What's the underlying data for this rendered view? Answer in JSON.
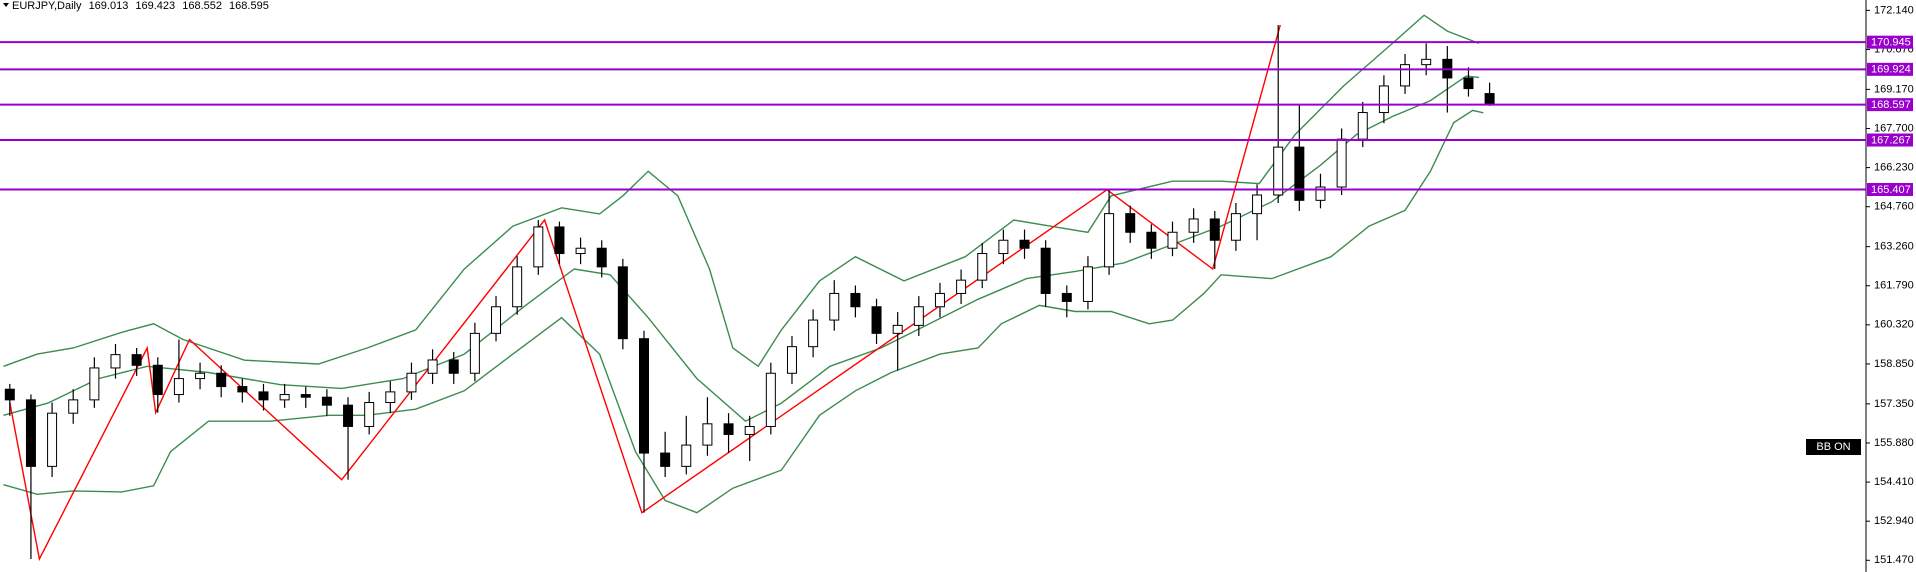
{
  "chart_data": {
    "type": "candlestick",
    "title": "EURJPY,Daily",
    "ylim": [
      151.03,
      172.53
    ],
    "yticks": [
      {
        "value": 172.14,
        "label": "172.140"
      },
      {
        "value": 170.67,
        "label": "170.670"
      },
      {
        "value": 169.17,
        "label": "169.170"
      },
      {
        "value": 167.7,
        "label": "167.700"
      },
      {
        "value": 166.23,
        "label": "166.230"
      },
      {
        "value": 164.76,
        "label": "164.760"
      },
      {
        "value": 163.26,
        "label": "163.260"
      },
      {
        "value": 161.79,
        "label": "161.790"
      },
      {
        "value": 160.32,
        "label": "160.320"
      },
      {
        "value": 158.85,
        "label": "158.850"
      },
      {
        "value": 157.35,
        "label": "157.350"
      },
      {
        "value": 155.88,
        "label": "155.880"
      },
      {
        "value": 154.41,
        "label": "154.410"
      },
      {
        "value": 152.94,
        "label": "152.940"
      },
      {
        "value": 151.47,
        "label": "151.470"
      }
    ],
    "up_color": "#ffffff",
    "down_color": "#000000",
    "ohlc": [
      [
        157.9,
        158.1,
        156.9,
        157.5
      ],
      [
        157.5,
        157.7,
        151.52,
        155.0
      ],
      [
        155.0,
        157.4,
        154.6,
        157.0
      ],
      [
        157.0,
        157.9,
        156.6,
        157.5
      ],
      [
        157.5,
        159.1,
        157.2,
        158.7
      ],
      [
        158.7,
        159.6,
        158.3,
        159.2
      ],
      [
        159.2,
        159.45,
        158.4,
        158.8
      ],
      [
        158.8,
        159.1,
        157.02,
        157.7
      ],
      [
        157.7,
        159.77,
        157.4,
        158.3
      ],
      [
        158.3,
        158.9,
        157.9,
        158.5
      ],
      [
        158.5,
        158.8,
        157.6,
        158.0
      ],
      [
        158.0,
        158.3,
        157.4,
        157.8
      ],
      [
        157.8,
        158.1,
        157.1,
        157.5
      ],
      [
        157.5,
        158.1,
        157.2,
        157.7
      ],
      [
        157.7,
        158.0,
        157.2,
        157.6
      ],
      [
        157.6,
        157.9,
        156.9,
        157.3
      ],
      [
        157.3,
        157.6,
        154.5,
        156.5
      ],
      [
        156.5,
        157.8,
        156.2,
        157.4
      ],
      [
        157.4,
        158.2,
        157.0,
        157.8
      ],
      [
        157.8,
        158.9,
        157.5,
        158.5
      ],
      [
        158.5,
        159.4,
        158.1,
        159.0
      ],
      [
        159.0,
        159.3,
        158.1,
        158.5
      ],
      [
        158.5,
        160.4,
        158.2,
        160.0
      ],
      [
        160.0,
        161.4,
        159.7,
        161.0
      ],
      [
        161.0,
        162.9,
        160.7,
        162.5
      ],
      [
        162.5,
        164.26,
        162.2,
        164.0
      ],
      [
        164.0,
        164.2,
        162.6,
        163.0
      ],
      [
        163.0,
        163.6,
        162.6,
        163.2
      ],
      [
        163.2,
        163.5,
        162.1,
        162.5
      ],
      [
        162.5,
        162.8,
        159.4,
        159.8
      ],
      [
        159.8,
        160.1,
        153.26,
        155.5
      ],
      [
        155.5,
        156.3,
        154.6,
        155.0
      ],
      [
        155.0,
        156.9,
        154.7,
        155.8
      ],
      [
        155.8,
        157.6,
        155.4,
        156.6
      ],
      [
        156.6,
        157.0,
        155.5,
        156.2
      ],
      [
        156.2,
        156.9,
        155.2,
        156.5
      ],
      [
        156.5,
        158.9,
        156.2,
        158.5
      ],
      [
        158.5,
        159.9,
        158.1,
        159.5
      ],
      [
        159.5,
        160.9,
        159.1,
        160.5
      ],
      [
        160.5,
        162.0,
        160.1,
        161.5
      ],
      [
        161.5,
        161.8,
        160.6,
        161.0
      ],
      [
        161.0,
        161.3,
        159.6,
        160.0
      ],
      [
        160.0,
        160.8,
        158.6,
        160.3
      ],
      [
        160.3,
        161.4,
        159.9,
        161.0
      ],
      [
        161.0,
        161.9,
        160.6,
        161.5
      ],
      [
        161.5,
        162.4,
        161.1,
        162.0
      ],
      [
        162.0,
        163.4,
        161.7,
        163.0
      ],
      [
        163.0,
        163.9,
        162.6,
        163.5
      ],
      [
        163.5,
        163.9,
        162.8,
        163.2
      ],
      [
        163.2,
        163.5,
        161.0,
        161.5
      ],
      [
        161.5,
        161.8,
        160.6,
        161.2
      ],
      [
        161.2,
        162.9,
        160.9,
        162.5
      ],
      [
        162.5,
        165.4,
        162.2,
        164.5
      ],
      [
        164.5,
        164.8,
        163.4,
        163.8
      ],
      [
        163.8,
        164.1,
        162.8,
        163.2
      ],
      [
        163.2,
        164.2,
        162.9,
        163.8
      ],
      [
        163.8,
        164.7,
        163.4,
        164.3
      ],
      [
        164.3,
        164.6,
        162.42,
        163.5
      ],
      [
        163.5,
        164.9,
        163.1,
        164.5
      ],
      [
        164.5,
        165.6,
        163.5,
        165.2
      ],
      [
        165.2,
        171.59,
        164.9,
        167.0
      ],
      [
        167.0,
        168.6,
        164.6,
        165.0
      ],
      [
        165.0,
        166.0,
        164.7,
        165.5
      ],
      [
        165.5,
        167.7,
        165.2,
        167.3
      ],
      [
        167.3,
        168.7,
        167.0,
        168.3
      ],
      [
        168.3,
        169.7,
        167.9,
        169.3
      ],
      [
        169.3,
        170.5,
        169.0,
        170.1
      ],
      [
        170.1,
        170.9,
        169.7,
        170.3
      ],
      [
        170.3,
        170.8,
        168.3,
        169.6
      ],
      [
        169.6,
        170.0,
        168.9,
        169.2
      ],
      [
        169.013,
        169.423,
        168.552,
        168.595
      ]
    ],
    "band_color": "#3c8c50",
    "bands": {
      "upper": {
        "x": [
          -0.3,
          1.3,
          3.0,
          5.3,
          6.8,
          8.2,
          11.1,
          14.6,
          16.9,
          19.2,
          21.5,
          23.8,
          26.1,
          27.9,
          29.0,
          30.2,
          31.6,
          33.1,
          34.2,
          35.4,
          36.5,
          38.3,
          40.0,
          42.3,
          45.2,
          47.5,
          49.2,
          51.0,
          52.1,
          55.0,
          57.3,
          59.1,
          60.8,
          63.1,
          65.4,
          66.9,
          68.0,
          69.5
        ],
        "values": [
          158.76,
          159.22,
          159.45,
          160.04,
          160.36,
          159.77,
          158.99,
          158.85,
          159.45,
          160.13,
          162.42,
          164.03,
          164.72,
          164.49,
          165.17,
          166.09,
          165.17,
          162.42,
          159.45,
          158.76,
          160.13,
          161.97,
          162.88,
          161.97,
          162.88,
          164.26,
          164.03,
          163.8,
          165.17,
          165.72,
          165.72,
          165.63,
          167.47,
          169.3,
          170.9,
          171.96,
          171.36,
          170.9
        ]
      },
      "middle": {
        "x": [
          -0.3,
          1.8,
          4.2,
          6.5,
          9.4,
          12.8,
          15.7,
          18.6,
          21.5,
          24.4,
          26.7,
          28.4,
          30.2,
          32.5,
          34.8,
          36.5,
          38.8,
          41.2,
          43.5,
          45.8,
          48.1,
          50.4,
          52.7,
          55.0,
          57.3,
          59.7,
          62.0,
          63.7,
          65.4,
          67.2,
          68.9,
          69.5
        ],
        "values": [
          156.92,
          157.38,
          158.3,
          158.76,
          158.53,
          158.07,
          157.93,
          158.3,
          159.22,
          161.05,
          162.42,
          162.2,
          160.59,
          158.3,
          156.7,
          157.38,
          158.76,
          159.45,
          160.36,
          161.28,
          162.06,
          162.33,
          162.65,
          163.34,
          164.03,
          164.95,
          166.32,
          167.47,
          168.15,
          168.75,
          169.67,
          169.62
        ]
      },
      "lower": {
        "x": [
          -0.3,
          1.3,
          3.0,
          5.3,
          6.8,
          7.6,
          9.4,
          12.3,
          15.1,
          16.9,
          19.2,
          21.5,
          23.8,
          26.1,
          27.9,
          29.6,
          31.0,
          32.5,
          34.2,
          36.5,
          38.3,
          40.0,
          41.7,
          44.0,
          45.8,
          46.9,
          48.7,
          50.4,
          52.1,
          53.9,
          55.0,
          56.5,
          57.3,
          59.7,
          62.5,
          64.3,
          66.0,
          67.2,
          68.3,
          69.2,
          69.7
        ],
        "values": [
          154.31,
          153.95,
          154.08,
          154.04,
          154.27,
          155.55,
          156.7,
          156.7,
          156.92,
          156.92,
          157.15,
          157.84,
          159.22,
          160.59,
          159.22,
          155.55,
          153.72,
          153.26,
          154.18,
          154.86,
          156.92,
          157.84,
          158.53,
          159.22,
          159.45,
          160.36,
          161.05,
          160.82,
          160.82,
          160.36,
          160.5,
          161.51,
          162.2,
          162.06,
          162.88,
          164.03,
          164.62,
          166.09,
          167.92,
          168.38,
          168.29
        ]
      }
    },
    "zigzag": {
      "color": "#ff0000",
      "x": [
        0,
        1.4,
        6.5,
        6.9,
        8.5,
        15.7,
        25.3,
        29.9,
        51.9,
        56.9,
        60.1
      ],
      "values": [
        157.4,
        151.52,
        159.45,
        157.02,
        159.77,
        154.5,
        164.26,
        153.26,
        165.4,
        162.42,
        171.59
      ]
    },
    "levels": [
      170.945,
      169.924,
      168.597,
      167.267,
      165.407
    ],
    "level_color": "#9900cc"
  },
  "controls": {
    "bb_toggle": "BB ON"
  }
}
